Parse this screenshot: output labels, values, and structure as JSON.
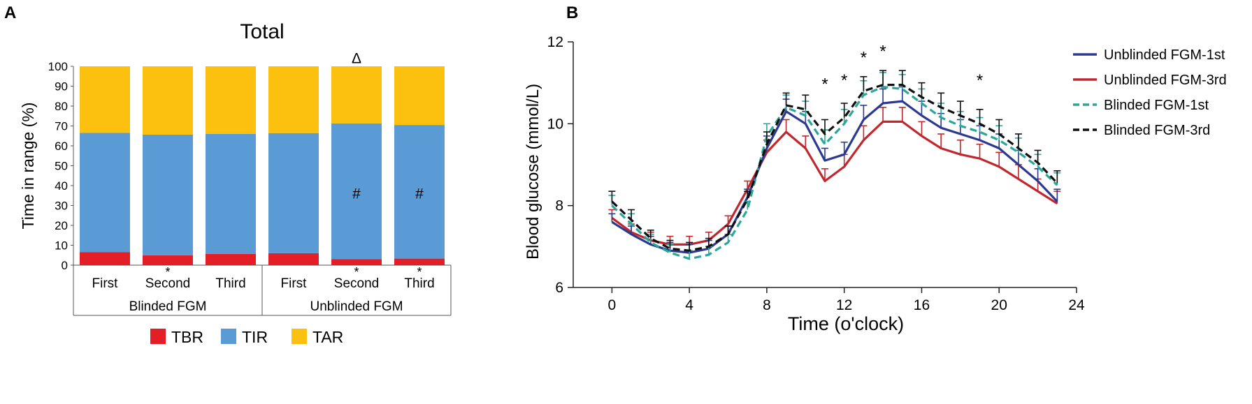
{
  "panels": {
    "a_label": "A",
    "b_label": "B"
  },
  "chart_data": [
    {
      "type": "bar",
      "stacked": true,
      "title": "Total",
      "ylabel": "Time in range (%)",
      "ylim": [
        0,
        100
      ],
      "yticks": [
        0,
        10,
        20,
        30,
        40,
        50,
        60,
        70,
        80,
        90,
        100
      ],
      "categories": [
        "First",
        "Second",
        "Third",
        "First",
        "Second",
        "Third"
      ],
      "groups": [
        {
          "label": "Blinded FGM",
          "categories": [
            0,
            1,
            2
          ]
        },
        {
          "label": "Unblinded FGM",
          "categories": [
            3,
            4,
            5
          ]
        }
      ],
      "series": [
        {
          "name": "TBR",
          "color": "#e41e26",
          "values": [
            6.5,
            5.0,
            5.7,
            6.0,
            3.0,
            3.3
          ]
        },
        {
          "name": "TIR",
          "color": "#5b9bd5",
          "values": [
            60.0,
            60.6,
            60.3,
            60.4,
            68.3,
            67.2
          ]
        },
        {
          "name": "TAR",
          "color": "#fcc00e",
          "values": [
            33.5,
            34.4,
            34.0,
            33.6,
            28.7,
            29.5
          ]
        }
      ],
      "annotations": [
        {
          "category": 1,
          "text": "*",
          "position": "below-axis"
        },
        {
          "category": 4,
          "text": "*",
          "position": "below-axis"
        },
        {
          "category": 5,
          "text": "*",
          "position": "below-axis"
        },
        {
          "category": 4,
          "text": "#",
          "position": "in-bar",
          "value": 36
        },
        {
          "category": 5,
          "text": "#",
          "position": "in-bar",
          "value": 36
        },
        {
          "category": 4,
          "text": "Δ",
          "position": "above-bar",
          "value": 104
        }
      ],
      "legend_position": "bottom"
    },
    {
      "type": "line",
      "xlabel": "Time (o'clock)",
      "ylabel": "Blood glucose (mmol/L)",
      "xlim": [
        -2,
        24
      ],
      "ylim": [
        6,
        12
      ],
      "xticks": [
        0,
        4,
        8,
        12,
        16,
        20,
        24
      ],
      "yticks": [
        6,
        8,
        10,
        12
      ],
      "x": [
        0,
        1,
        2,
        3,
        4,
        5,
        6,
        7,
        8,
        9,
        10,
        11,
        12,
        13,
        14,
        15,
        16,
        17,
        18,
        19,
        20,
        21,
        22,
        23
      ],
      "series": [
        {
          "name": "Unblinded FGM-1st",
          "color": "#2b3990",
          "style": "solid",
          "values": [
            7.6,
            7.3,
            7.05,
            6.9,
            6.85,
            6.95,
            7.3,
            8.2,
            9.4,
            10.3,
            10.0,
            9.1,
            9.25,
            10.1,
            10.5,
            10.55,
            10.2,
            9.9,
            9.75,
            9.6,
            9.4,
            9.0,
            8.6,
            8.1
          ],
          "errors": [
            0.2,
            0.2,
            0.2,
            0.2,
            0.2,
            0.2,
            0.2,
            0.2,
            0.3,
            0.3,
            0.3,
            0.3,
            0.3,
            0.35,
            0.35,
            0.35,
            0.35,
            0.35,
            0.35,
            0.35,
            0.35,
            0.35,
            0.3,
            0.3
          ]
        },
        {
          "name": "Unblinded FGM-3rd",
          "color": "#c1272d",
          "style": "solid",
          "values": [
            7.7,
            7.35,
            7.15,
            7.05,
            7.05,
            7.15,
            7.55,
            8.4,
            9.3,
            9.8,
            9.4,
            8.6,
            8.95,
            9.6,
            10.05,
            10.05,
            9.7,
            9.4,
            9.25,
            9.15,
            8.95,
            8.65,
            8.35,
            8.05
          ],
          "errors": [
            0.2,
            0.2,
            0.2,
            0.2,
            0.2,
            0.2,
            0.2,
            0.2,
            0.3,
            0.3,
            0.3,
            0.3,
            0.3,
            0.35,
            0.35,
            0.35,
            0.35,
            0.35,
            0.35,
            0.35,
            0.35,
            0.35,
            0.3,
            0.3
          ]
        },
        {
          "name": "Blinded FGM-1st",
          "color": "#2aa79b",
          "style": "dashed",
          "values": [
            8.0,
            7.55,
            7.1,
            6.85,
            6.7,
            6.8,
            7.1,
            7.9,
            9.7,
            10.4,
            10.2,
            9.5,
            10.0,
            10.7,
            10.9,
            10.85,
            10.5,
            10.15,
            9.95,
            9.8,
            9.6,
            9.3,
            8.95,
            8.5
          ],
          "errors": [
            0.25,
            0.25,
            0.2,
            0.2,
            0.2,
            0.2,
            0.2,
            0.2,
            0.3,
            0.3,
            0.35,
            0.35,
            0.35,
            0.35,
            0.35,
            0.35,
            0.35,
            0.35,
            0.35,
            0.35,
            0.35,
            0.35,
            0.3,
            0.3
          ]
        },
        {
          "name": "Blinded FGM-3rd",
          "color": "#111111",
          "style": "dashed",
          "values": [
            8.1,
            7.65,
            7.2,
            6.95,
            6.9,
            7.0,
            7.3,
            8.15,
            9.5,
            10.45,
            10.35,
            9.75,
            10.15,
            10.8,
            10.95,
            10.95,
            10.65,
            10.4,
            10.2,
            10.0,
            9.75,
            9.4,
            9.05,
            8.55
          ],
          "errors": [
            0.25,
            0.25,
            0.2,
            0.2,
            0.2,
            0.2,
            0.2,
            0.2,
            0.3,
            0.3,
            0.35,
            0.35,
            0.35,
            0.35,
            0.35,
            0.35,
            0.35,
            0.35,
            0.35,
            0.35,
            0.35,
            0.35,
            0.3,
            0.3
          ]
        }
      ],
      "annotations": [
        {
          "x": 11,
          "y": 11.0,
          "text": "*"
        },
        {
          "x": 12,
          "y": 11.1,
          "text": "*"
        },
        {
          "x": 13,
          "y": 11.65,
          "text": "*"
        },
        {
          "x": 14,
          "y": 11.8,
          "text": "*"
        },
        {
          "x": 19,
          "y": 11.1,
          "text": "*"
        }
      ],
      "legend_position": "top-right"
    }
  ]
}
